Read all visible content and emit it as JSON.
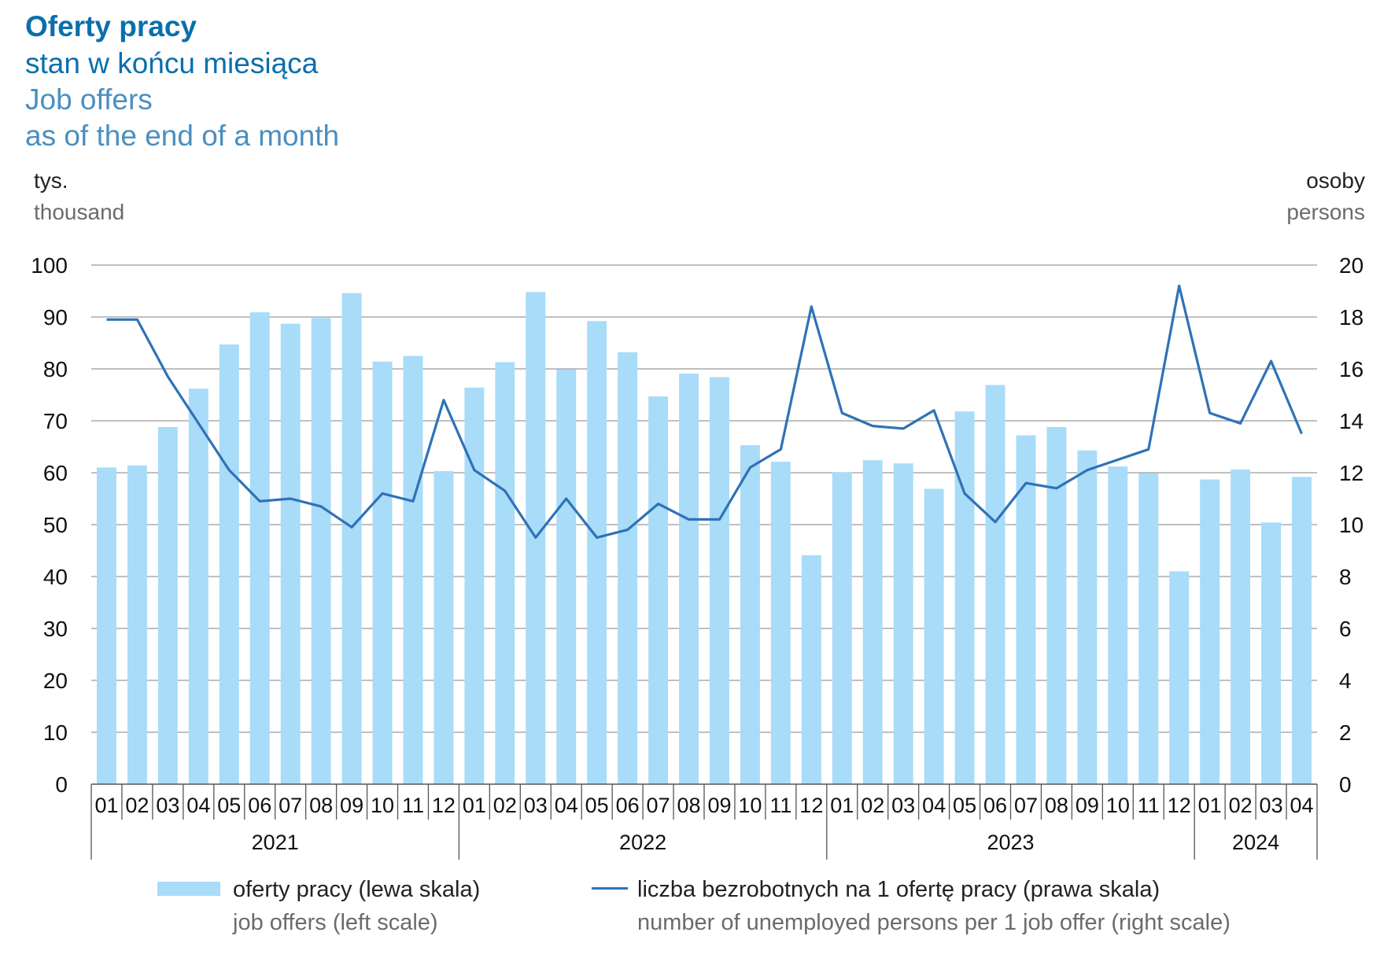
{
  "title": {
    "pl_main": "Oferty pracy",
    "pl_sub": "stan w końcu miesiąca",
    "en_main": "Job offers",
    "en_sub": "as of the end of a month"
  },
  "units": {
    "left_pl": "tys.",
    "left_en": "thousand",
    "right_pl": "osoby",
    "right_en": "persons"
  },
  "legend": {
    "bar_pl": "oferty pracy (lewa skala)",
    "bar_en": "job offers (left scale)",
    "line_pl": "liczba bezrobotnych na 1 ofertę pracy (prawa skala)",
    "line_en": "number of unemployed persons per 1 job offer (right scale)"
  },
  "colors": {
    "bar": "#a8dcf9",
    "line": "#2f72b6",
    "grid": "#9a9a9a",
    "axis": "#555555"
  },
  "chart_data": {
    "type": "bar",
    "categories": [
      "01",
      "02",
      "03",
      "04",
      "05",
      "06",
      "07",
      "08",
      "09",
      "10",
      "11",
      "12",
      "01",
      "02",
      "03",
      "04",
      "05",
      "06",
      "07",
      "08",
      "09",
      "10",
      "11",
      "12",
      "01",
      "02",
      "03",
      "04",
      "05",
      "06",
      "07",
      "08",
      "09",
      "10",
      "11",
      "12",
      "01",
      "02",
      "03",
      "04"
    ],
    "years": [
      {
        "label": "2021",
        "months": 12
      },
      {
        "label": "2022",
        "months": 12
      },
      {
        "label": "2023",
        "months": 12
      },
      {
        "label": "2024",
        "months": 4
      }
    ],
    "y_left": {
      "ticks": [
        0,
        10,
        20,
        30,
        40,
        50,
        60,
        70,
        80,
        90,
        100
      ],
      "ylim": [
        0,
        100
      ]
    },
    "y_right": {
      "ticks": [
        0,
        2,
        4,
        6,
        8,
        10,
        12,
        14,
        16,
        18,
        20
      ],
      "ylim": [
        0,
        20
      ]
    },
    "grid": true,
    "legend_position": "bottom",
    "series": [
      {
        "name": "oferty pracy (lewa skala)",
        "type": "bar",
        "axis": "left",
        "values": [
          61,
          61.4,
          68.8,
          76.2,
          84.7,
          90.9,
          88.7,
          89.8,
          94.6,
          81.4,
          82.5,
          60.3,
          76.4,
          81.3,
          94.8,
          79.9,
          89.2,
          83.2,
          74.7,
          79.1,
          78.4,
          65.3,
          62.1,
          44.1,
          60.1,
          62.4,
          61.8,
          56.9,
          71.8,
          76.9,
          67.2,
          68.8,
          64.3,
          61.2,
          59.9,
          41,
          58.7,
          60.6,
          50.4,
          59.2
        ]
      },
      {
        "name": "liczba bezrobotnych na 1 ofertę pracy (prawa skala)",
        "type": "line",
        "axis": "right",
        "values": [
          17.9,
          17.9,
          15.7,
          13.9,
          12.1,
          10.9,
          11,
          10.7,
          9.9,
          11.2,
          10.9,
          14.8,
          12.1,
          11.3,
          9.5,
          11,
          9.5,
          9.8,
          10.8,
          10.2,
          10.2,
          12.2,
          12.9,
          18.4,
          14.3,
          13.8,
          13.7,
          14.4,
          11.2,
          10.1,
          11.6,
          11.4,
          12.1,
          12.5,
          12.9,
          19.2,
          14.3,
          13.9,
          16.3,
          13.5
        ]
      }
    ]
  }
}
